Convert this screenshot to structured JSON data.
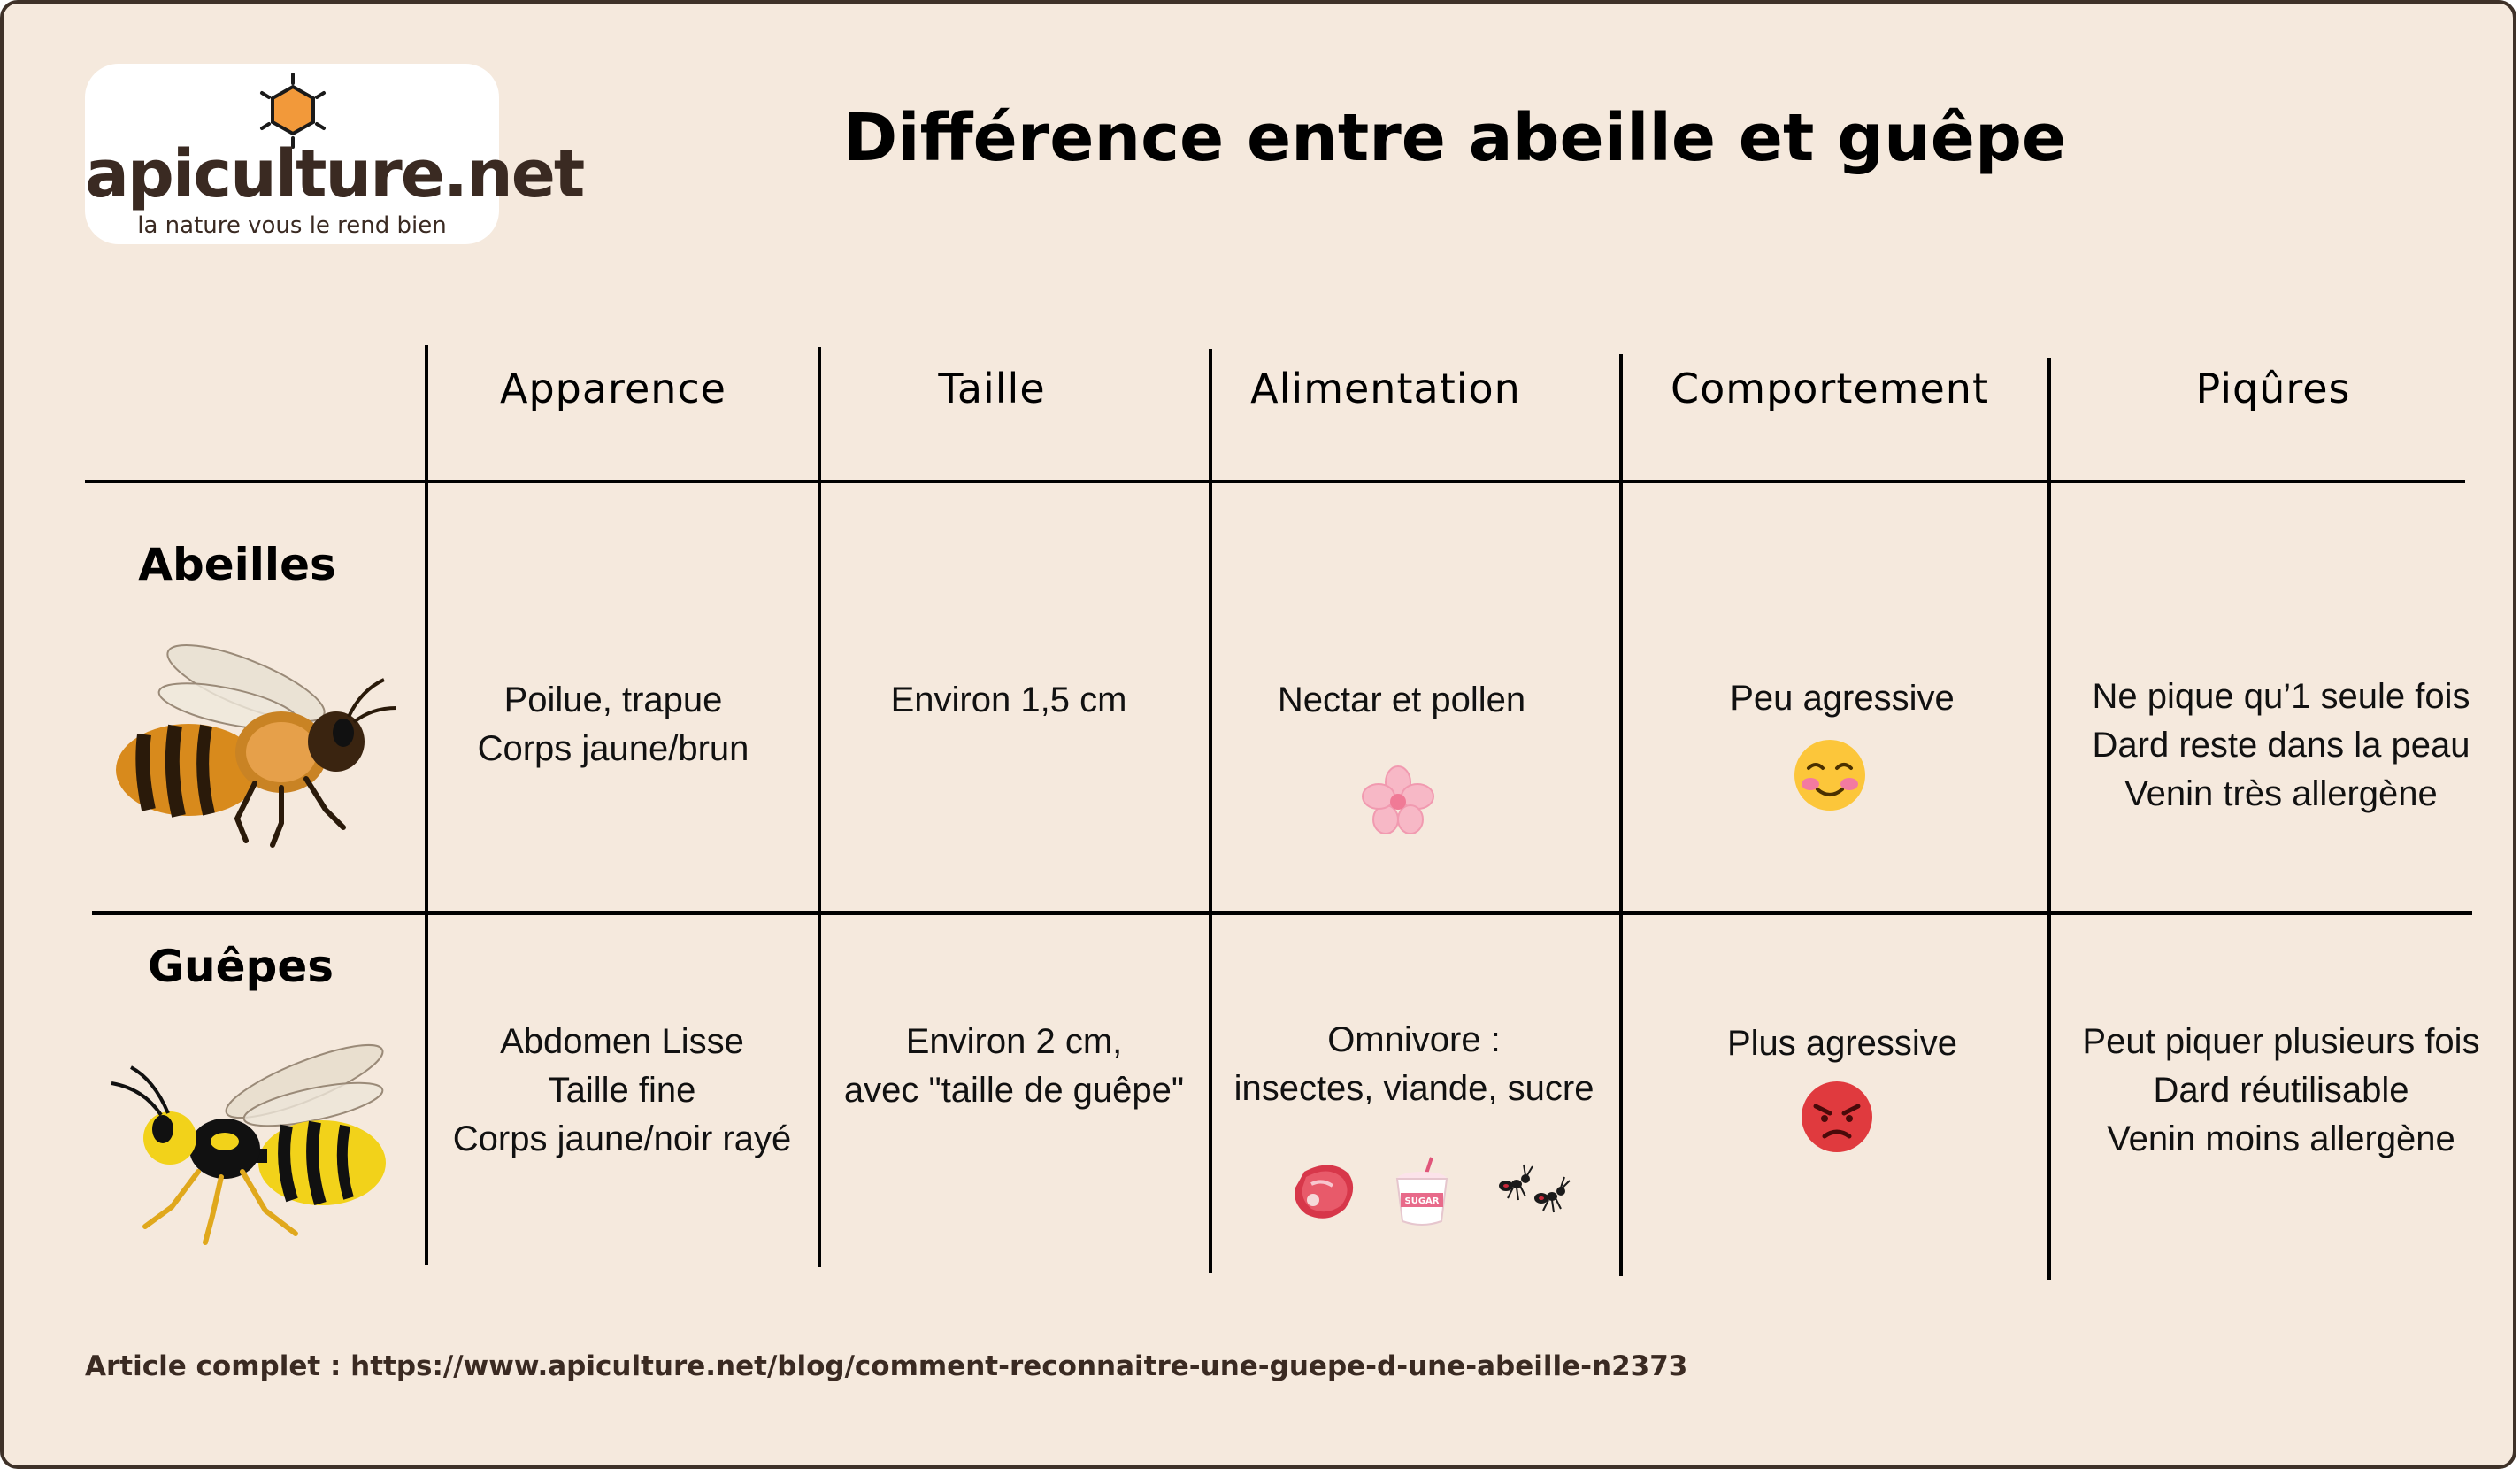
{
  "logo": {
    "name": "apiculture.net",
    "tagline": "la nature vous le rend bien"
  },
  "title": "Différence entre abeille et guêpe",
  "columns": [
    "Apparence",
    "Taille",
    "Alimentation",
    "Comportement",
    "Piqûres"
  ],
  "rows": [
    {
      "label": "Abeilles",
      "apparence": [
        "Poilue, trapue",
        "Corps jaune/brun"
      ],
      "taille": [
        "Environ 1,5 cm"
      ],
      "alimentation": [
        "Nectar et pollen"
      ],
      "comportement": [
        "Peu agressive"
      ],
      "piqures": [
        "Ne pique qu’1 seule fois",
        "Dard reste dans la peau",
        "Venin très allergène"
      ],
      "icons": [
        "bee-icon",
        "flower-icon",
        "smiling-blush-emoji-icon"
      ]
    },
    {
      "label": "Guêpes",
      "apparence": [
        "Abdomen Lisse",
        "Taille fine",
        "Corps jaune/noir rayé"
      ],
      "taille": [
        "Environ 2 cm,",
        "avec \"taille de guêpe\""
      ],
      "alimentation": [
        "Omnivore :",
        "insectes, viande, sucre"
      ],
      "comportement": [
        "Plus agressive"
      ],
      "piqures": [
        "Peut piquer plusieurs fois",
        "Dard réutilisable",
        "Venin moins allergène"
      ],
      "icons": [
        "wasp-icon",
        "meat-icon",
        "sugar-cup-icon",
        "ants-icon",
        "angry-face-emoji-icon"
      ],
      "sugar_label": "SUGAR"
    }
  ],
  "footer": "Article complet : https://www.apiculture.net/blog/comment-reconnaitre-une-guepe-d-une-abeille-n2373",
  "colors": {
    "background": "#f5e9dd",
    "border": "#3e3128",
    "logo_hex": "#f2993a",
    "text_dark": "#3a2a22"
  }
}
